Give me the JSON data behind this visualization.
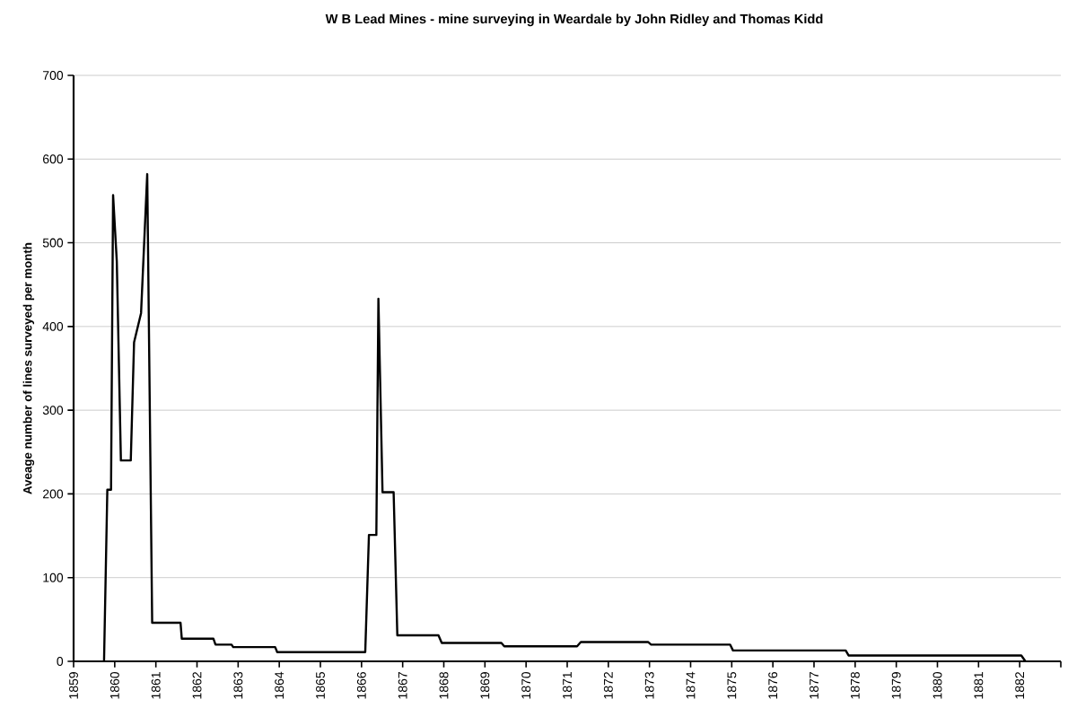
{
  "chart_data": {
    "type": "line",
    "title": "W B Lead Mines - mine surveying in Weardale by John Ridley and Thomas Kidd",
    "ylabel": "Aveage number of lines surveyed per month",
    "x": [
      1859.74,
      1859.82,
      1859.91,
      1859.96,
      1860.05,
      1860.15,
      1860.39,
      1860.47,
      1860.64,
      1860.79,
      1860.91,
      1861.6,
      1861.63,
      1862.4,
      1862.45,
      1862.84,
      1862.88,
      1863.9,
      1863.95,
      1866.09,
      1866.18,
      1866.36,
      1866.41,
      1866.51,
      1866.78,
      1866.87,
      1867.87,
      1867.95,
      1869.4,
      1869.47,
      1871.24,
      1871.33,
      1872.97,
      1873.04,
      1874.96,
      1875.03,
      1877.77,
      1877.84,
      1882.04,
      1882.14
    ],
    "series": [
      {
        "color": "#000000",
        "values": [
          0,
          205,
          205,
          557,
          478,
          240,
          240,
          381,
          416,
          582,
          46,
          46,
          27,
          27,
          20,
          20,
          17,
          17,
          11,
          11,
          151,
          151,
          433,
          202,
          202,
          31,
          31,
          22,
          22,
          18,
          18,
          23,
          23,
          20,
          20,
          13,
          13,
          7,
          7,
          0
        ]
      }
    ],
    "xlim": [
      1859,
      1883
    ],
    "xticks": [
      1859,
      1860,
      1861,
      1862,
      1863,
      1864,
      1865,
      1866,
      1867,
      1868,
      1869,
      1870,
      1871,
      1872,
      1873,
      1874,
      1875,
      1876,
      1877,
      1878,
      1879,
      1880,
      1881,
      1882,
      {
        "value": 1883,
        "label": null
      }
    ],
    "ylim": [
      0,
      700
    ],
    "yticks": [
      0,
      100,
      200,
      300,
      400,
      500,
      600,
      700
    ],
    "grid": "y",
    "marker": "none",
    "line_style": "solid"
  }
}
